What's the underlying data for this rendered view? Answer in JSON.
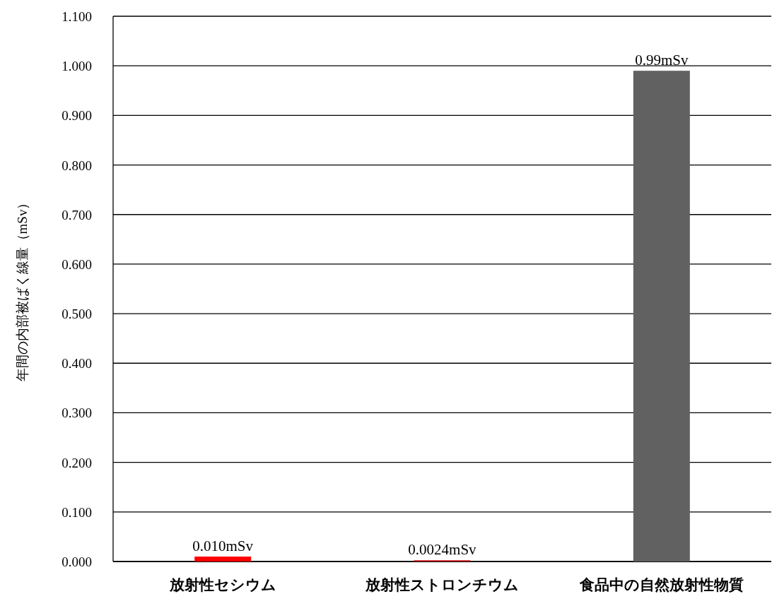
{
  "chart_data": {
    "type": "bar",
    "ylabel": "年間の内部被ばく線量（mSv）",
    "categories": [
      "放射性セシウム",
      "放射性ストロンチウム",
      "食品中の自然放射性物質"
    ],
    "values": [
      0.01,
      0.0024,
      0.99
    ],
    "colors": [
      "#ff0000",
      "#c00000",
      "#616161"
    ],
    "value_labels": [
      "0.010mSv",
      "0.0024mSv",
      "0.99mSv"
    ],
    "ylim": [
      0,
      1.1
    ],
    "yticks": [
      {
        "value": 0,
        "label": "0.000"
      },
      {
        "value": 0.1,
        "label": "0.100"
      },
      {
        "value": 0.2,
        "label": "0.200"
      },
      {
        "value": 0.3,
        "label": "0.300"
      },
      {
        "value": 0.4,
        "label": "0.400"
      },
      {
        "value": 0.5,
        "label": "0.500"
      },
      {
        "value": 0.6,
        "label": "0.600"
      },
      {
        "value": 0.7,
        "label": "0.700"
      },
      {
        "value": 0.8,
        "label": "0.800"
      },
      {
        "value": 0.9,
        "label": "0.900"
      },
      {
        "value": 1.0,
        "label": "1.000"
      },
      {
        "value": 1.1,
        "label": "1.100"
      }
    ],
    "grid": "y"
  }
}
